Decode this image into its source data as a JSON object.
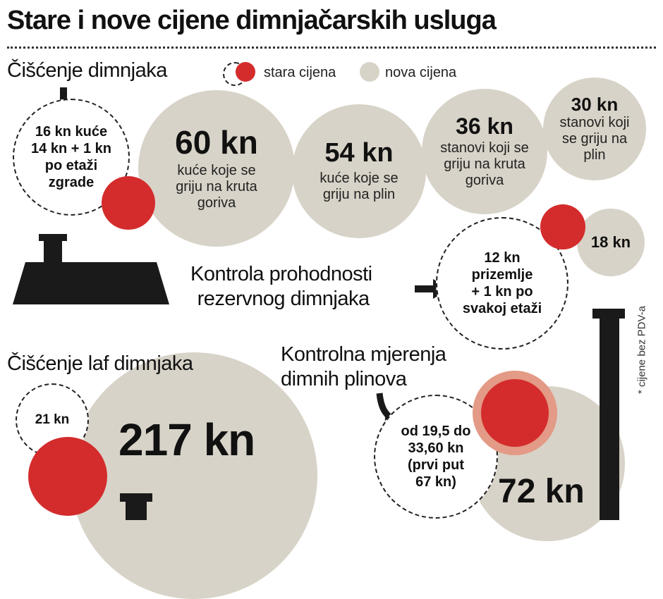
{
  "title": "Stare i nove cijene dimnjačarskih usluga",
  "legend": {
    "old_label": "stara cijena",
    "new_label": "nova cijena"
  },
  "colors": {
    "old": "#d42c2c",
    "new": "#d8d3c8",
    "ink": "#1a1a1a"
  },
  "sections": {
    "chimney_cleaning": {
      "heading": "Čišćenje dimnjaka",
      "old_price_lines": [
        "16 kn kuće",
        "14 kn + 1 kn",
        "po etaži",
        "zgrade"
      ],
      "new_prices": [
        {
          "amount": "60 kn",
          "desc_lines": [
            "kuće koje se",
            "griju na kruta",
            "goriva"
          ]
        },
        {
          "amount": "54 kn",
          "desc_lines": [
            "kuće koje se",
            "griju na plin"
          ]
        },
        {
          "amount": "36 kn",
          "desc_lines": [
            "stanovi koji se",
            "griju na kruta",
            "goriva"
          ]
        },
        {
          "amount": "30 kn",
          "desc_lines": [
            "stanovi koji",
            "se griju na",
            "plin"
          ]
        }
      ]
    },
    "reserve_check": {
      "heading_lines": [
        "Kontrola prohodnosti",
        "rezervnog dimnjaka"
      ],
      "old_price_lines": [
        "12 kn",
        "prizemlje",
        "+ 1 kn po",
        "svakoj etaži"
      ],
      "new_price": "18 kn"
    },
    "laf_cleaning": {
      "heading": "Čišćenje laf dimnjaka",
      "old_price": "21 kn",
      "new_price": "217 kn"
    },
    "gas_measurement": {
      "heading_lines": [
        "Kontrolna mjerenja",
        "dimnih plinova"
      ],
      "old_price_lines": [
        "od 19,5 do",
        "33,60 kn",
        "(prvi put",
        "67 kn)"
      ],
      "new_price": "72 kn"
    }
  },
  "footnote": "* cijene bez PDV-a"
}
